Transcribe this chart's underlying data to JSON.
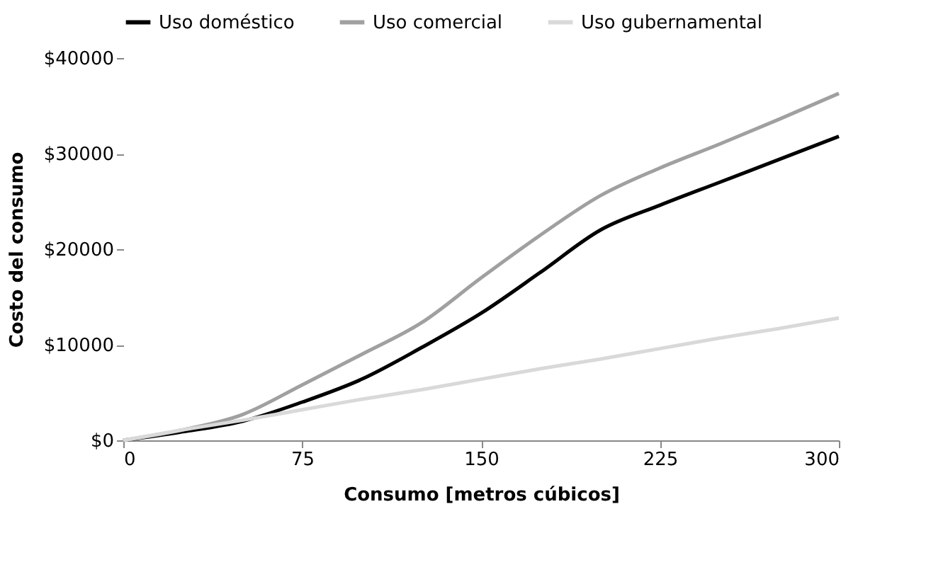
{
  "chart_data": {
    "type": "line",
    "xlabel": "Consumo [metros cúbicos]",
    "ylabel": "Costo del consumo",
    "x": [
      0,
      25,
      50,
      75,
      100,
      125,
      150,
      175,
      200,
      225,
      250,
      275,
      300
    ],
    "xlim": [
      0,
      300
    ],
    "xticks": [
      0,
      75,
      150,
      225,
      300
    ],
    "ylim": [
      0,
      40000
    ],
    "yticks": [
      {
        "value": 0,
        "label": "$0"
      },
      {
        "value": 10000,
        "label": "$10000"
      },
      {
        "value": 20000,
        "label": "$20000"
      },
      {
        "value": 30000,
        "label": "$30000"
      },
      {
        "value": 40000,
        "label": "$40000"
      }
    ],
    "grid": false,
    "legend": "top",
    "marker": "none",
    "line_style": "solid",
    "series": [
      {
        "name": "Uso doméstico",
        "color": "#000000",
        "values": [
          0,
          900,
          2000,
          4000,
          6400,
          9700,
          13300,
          17600,
          22000,
          24600,
          27000,
          29400,
          31800
        ]
      },
      {
        "name": "Uso comercial",
        "color": "#a0a0a0",
        "values": [
          0,
          1100,
          2700,
          5800,
          9000,
          12300,
          17000,
          21500,
          25600,
          28500,
          31000,
          33600,
          36300
        ]
      },
      {
        "name": "Uso gubernamental",
        "color": "#d9d9d9",
        "values": [
          0,
          1100,
          2100,
          3200,
          4300,
          5300,
          6400,
          7500,
          8500,
          9600,
          10700,
          11700,
          12800
        ]
      }
    ]
  }
}
